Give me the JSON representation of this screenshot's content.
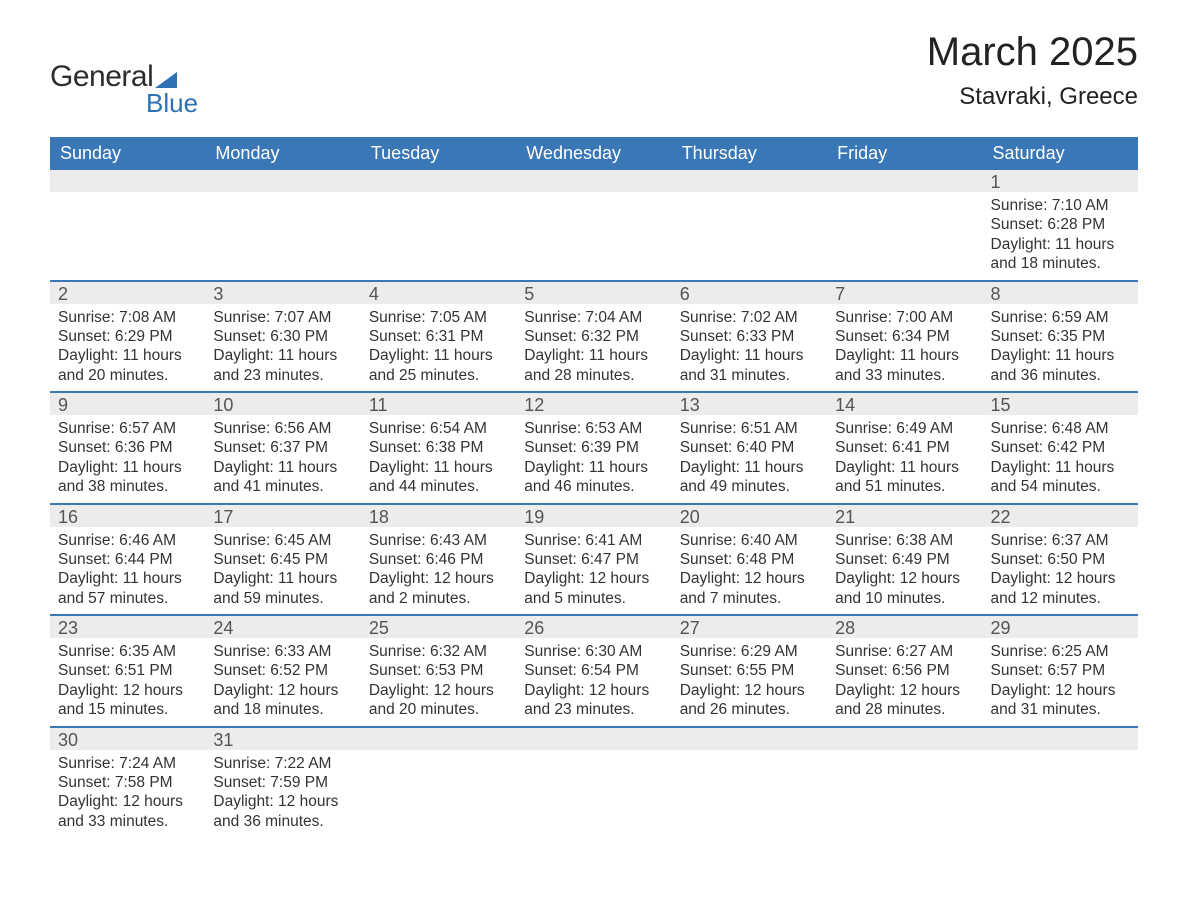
{
  "brand": {
    "word1": "General",
    "word2": "Blue",
    "accent_color": "#2f6fb3"
  },
  "title": "March 2025",
  "location": "Stavraki, Greece",
  "colors": {
    "header_bg": "#3a77b7",
    "header_text": "#ffffff",
    "daynum_bg": "#ececec",
    "row_divider": "#3a77b7",
    "body_text": "#333333",
    "background": "#ffffff"
  },
  "typography": {
    "title_fontsize": 40,
    "location_fontsize": 24,
    "header_fontsize": 18,
    "daynum_fontsize": 18,
    "body_fontsize": 15.5
  },
  "layout": {
    "columns": 7,
    "rows": 6,
    "column_width_pct": 14.28
  },
  "weekdays": [
    "Sunday",
    "Monday",
    "Tuesday",
    "Wednesday",
    "Thursday",
    "Friday",
    "Saturday"
  ],
  "labels": {
    "sunrise": "Sunrise:",
    "sunset": "Sunset:",
    "daylight": "Daylight:"
  },
  "weeks": [
    [
      null,
      null,
      null,
      null,
      null,
      null,
      {
        "n": "1",
        "sunrise": "7:10 AM",
        "sunset": "6:28 PM",
        "daylight": "11 hours and 18 minutes."
      }
    ],
    [
      {
        "n": "2",
        "sunrise": "7:08 AM",
        "sunset": "6:29 PM",
        "daylight": "11 hours and 20 minutes."
      },
      {
        "n": "3",
        "sunrise": "7:07 AM",
        "sunset": "6:30 PM",
        "daylight": "11 hours and 23 minutes."
      },
      {
        "n": "4",
        "sunrise": "7:05 AM",
        "sunset": "6:31 PM",
        "daylight": "11 hours and 25 minutes."
      },
      {
        "n": "5",
        "sunrise": "7:04 AM",
        "sunset": "6:32 PM",
        "daylight": "11 hours and 28 minutes."
      },
      {
        "n": "6",
        "sunrise": "7:02 AM",
        "sunset": "6:33 PM",
        "daylight": "11 hours and 31 minutes."
      },
      {
        "n": "7",
        "sunrise": "7:00 AM",
        "sunset": "6:34 PM",
        "daylight": "11 hours and 33 minutes."
      },
      {
        "n": "8",
        "sunrise": "6:59 AM",
        "sunset": "6:35 PM",
        "daylight": "11 hours and 36 minutes."
      }
    ],
    [
      {
        "n": "9",
        "sunrise": "6:57 AM",
        "sunset": "6:36 PM",
        "daylight": "11 hours and 38 minutes."
      },
      {
        "n": "10",
        "sunrise": "6:56 AM",
        "sunset": "6:37 PM",
        "daylight": "11 hours and 41 minutes."
      },
      {
        "n": "11",
        "sunrise": "6:54 AM",
        "sunset": "6:38 PM",
        "daylight": "11 hours and 44 minutes."
      },
      {
        "n": "12",
        "sunrise": "6:53 AM",
        "sunset": "6:39 PM",
        "daylight": "11 hours and 46 minutes."
      },
      {
        "n": "13",
        "sunrise": "6:51 AM",
        "sunset": "6:40 PM",
        "daylight": "11 hours and 49 minutes."
      },
      {
        "n": "14",
        "sunrise": "6:49 AM",
        "sunset": "6:41 PM",
        "daylight": "11 hours and 51 minutes."
      },
      {
        "n": "15",
        "sunrise": "6:48 AM",
        "sunset": "6:42 PM",
        "daylight": "11 hours and 54 minutes."
      }
    ],
    [
      {
        "n": "16",
        "sunrise": "6:46 AM",
        "sunset": "6:44 PM",
        "daylight": "11 hours and 57 minutes."
      },
      {
        "n": "17",
        "sunrise": "6:45 AM",
        "sunset": "6:45 PM",
        "daylight": "11 hours and 59 minutes."
      },
      {
        "n": "18",
        "sunrise": "6:43 AM",
        "sunset": "6:46 PM",
        "daylight": "12 hours and 2 minutes."
      },
      {
        "n": "19",
        "sunrise": "6:41 AM",
        "sunset": "6:47 PM",
        "daylight": "12 hours and 5 minutes."
      },
      {
        "n": "20",
        "sunrise": "6:40 AM",
        "sunset": "6:48 PM",
        "daylight": "12 hours and 7 minutes."
      },
      {
        "n": "21",
        "sunrise": "6:38 AM",
        "sunset": "6:49 PM",
        "daylight": "12 hours and 10 minutes."
      },
      {
        "n": "22",
        "sunrise": "6:37 AM",
        "sunset": "6:50 PM",
        "daylight": "12 hours and 12 minutes."
      }
    ],
    [
      {
        "n": "23",
        "sunrise": "6:35 AM",
        "sunset": "6:51 PM",
        "daylight": "12 hours and 15 minutes."
      },
      {
        "n": "24",
        "sunrise": "6:33 AM",
        "sunset": "6:52 PM",
        "daylight": "12 hours and 18 minutes."
      },
      {
        "n": "25",
        "sunrise": "6:32 AM",
        "sunset": "6:53 PM",
        "daylight": "12 hours and 20 minutes."
      },
      {
        "n": "26",
        "sunrise": "6:30 AM",
        "sunset": "6:54 PM",
        "daylight": "12 hours and 23 minutes."
      },
      {
        "n": "27",
        "sunrise": "6:29 AM",
        "sunset": "6:55 PM",
        "daylight": "12 hours and 26 minutes."
      },
      {
        "n": "28",
        "sunrise": "6:27 AM",
        "sunset": "6:56 PM",
        "daylight": "12 hours and 28 minutes."
      },
      {
        "n": "29",
        "sunrise": "6:25 AM",
        "sunset": "6:57 PM",
        "daylight": "12 hours and 31 minutes."
      }
    ],
    [
      {
        "n": "30",
        "sunrise": "7:24 AM",
        "sunset": "7:58 PM",
        "daylight": "12 hours and 33 minutes."
      },
      {
        "n": "31",
        "sunrise": "7:22 AM",
        "sunset": "7:59 PM",
        "daylight": "12 hours and 36 minutes."
      },
      null,
      null,
      null,
      null,
      null
    ]
  ]
}
